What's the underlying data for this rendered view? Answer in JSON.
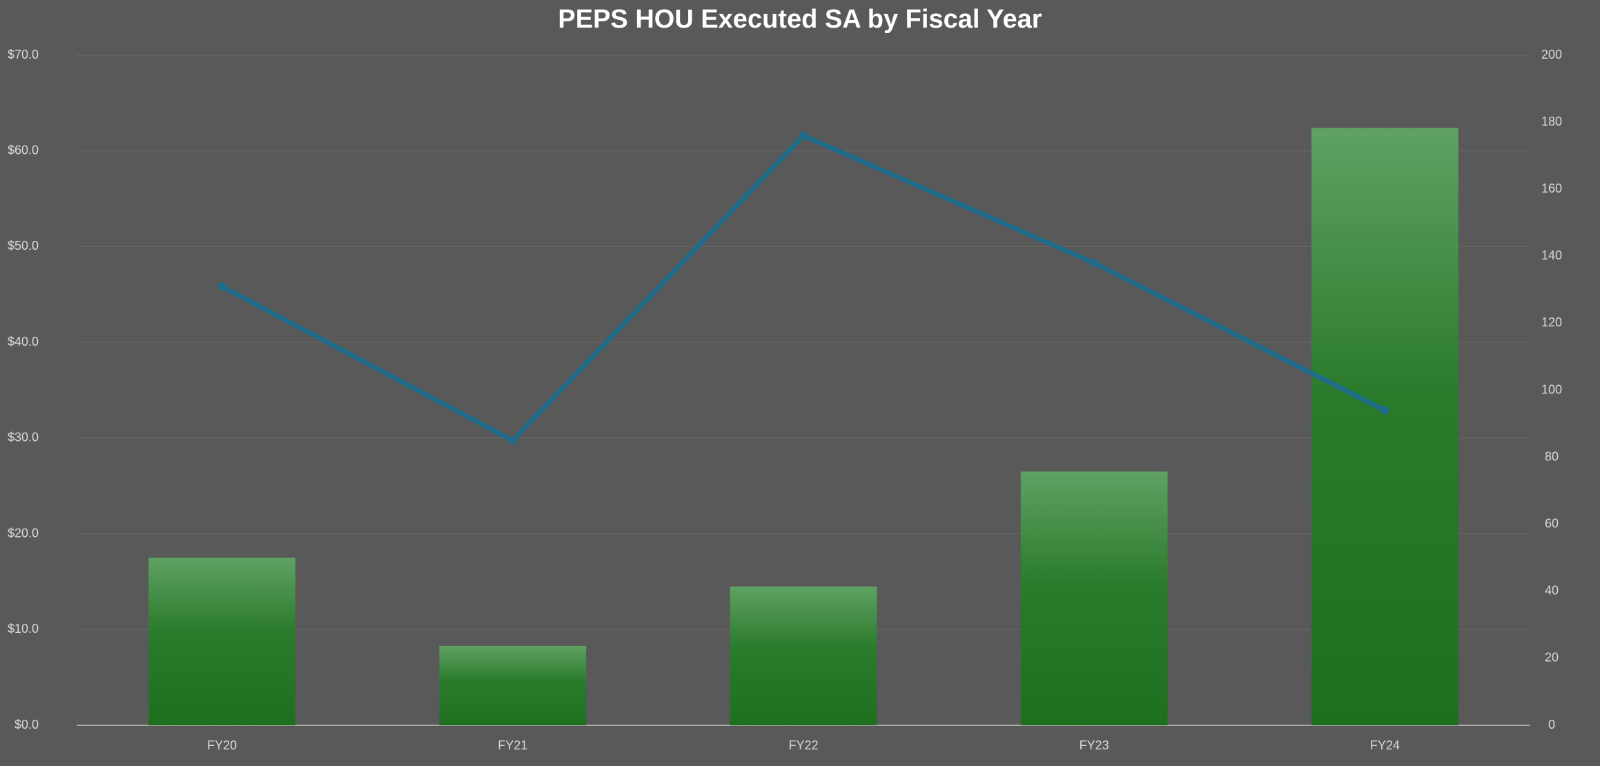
{
  "chart_data": {
    "type": "bar",
    "title": "PEPS HOU Executed SA by Fiscal Year",
    "categories": [
      "FY20",
      "FY21",
      "FY22",
      "FY23",
      "FY24"
    ],
    "series": [
      {
        "type": "bar",
        "color": "#1e701f",
        "values": [
          17.5,
          8.3,
          14.5,
          26.5,
          62.4
        ]
      },
      {
        "type": "line",
        "axis": "y2",
        "color": "#1f6b8a",
        "values": [
          131,
          85,
          176,
          138,
          94
        ]
      }
    ],
    "ylim": [
      0,
      70
    ],
    "yticks": [
      {
        "value": 0,
        "label": "$0.0"
      },
      {
        "value": 10,
        "label": "$10.0"
      },
      {
        "value": 20,
        "label": "$20.0"
      },
      {
        "value": 30,
        "label": "$30.0"
      },
      {
        "value": 40,
        "label": "$40.0"
      },
      {
        "value": 50,
        "label": "$50.0"
      },
      {
        "value": 60,
        "label": "$60.0"
      },
      {
        "value": 70,
        "label": "$70.0"
      }
    ],
    "y2lim": [
      0,
      200
    ],
    "y2ticks": [
      0,
      20,
      40,
      60,
      80,
      100,
      120,
      140,
      160,
      180,
      200
    ],
    "grid": true
  }
}
